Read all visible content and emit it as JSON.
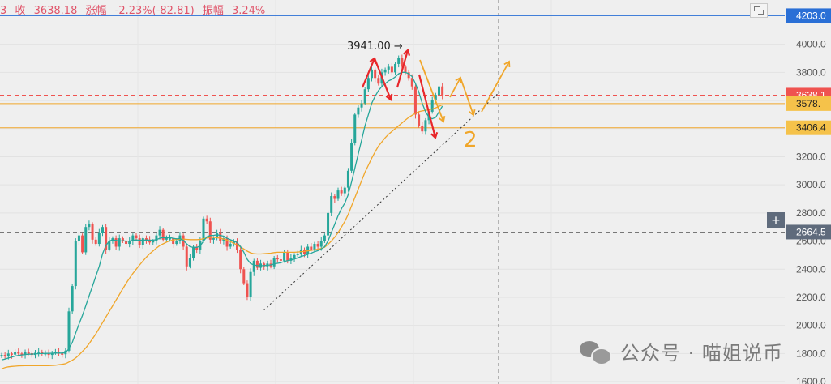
{
  "header": {
    "prefix": "3",
    "close_label": "收",
    "close_value": "3638.18",
    "change_label": "涨幅",
    "change_value": "-2.23%(-82.81)",
    "amplitude_label": "振幅",
    "amplitude_value": "3.24%"
  },
  "annotations": {
    "peak_label": "3941.00 →",
    "wave_label": "2"
  },
  "watermark": "公众号 · 喵姐说币",
  "price_tags": [
    {
      "text": "4203.0",
      "price": 4203,
      "style": "blue"
    },
    {
      "text": "3638.1",
      "price": 3638,
      "style": "red"
    },
    {
      "text": "3578.",
      "price": 3578,
      "style": "orange"
    },
    {
      "text": "3406.4",
      "price": 3406,
      "style": "orange"
    },
    {
      "text": "2664.5",
      "price": 2664,
      "style": "dark"
    }
  ],
  "colors": {
    "up": "#26a69a",
    "down": "#ef5350",
    "ma_fast": "#26a69a",
    "ma_slow": "#f0a62a",
    "annotation_red": "#e8262a",
    "annotation_orange": "#f0a62a",
    "hline_red": "#ef5350",
    "hline_orange": "#f0a62a",
    "hline_blue": "#2a6fd6"
  },
  "chart_data": {
    "type": "candlestick",
    "ylim": [
      1560,
      4240
    ],
    "y_ticks": [
      4000,
      3800,
      3600,
      3400,
      3200,
      3000,
      2800,
      2600,
      2400,
      2200,
      2000,
      1800,
      1600
    ],
    "y_tick_labels": [
      "4000.0",
      "3800.0",
      "3600.0",
      "3400.0",
      "3200.0",
      "3000.0",
      "2800.0",
      "2600.0",
      "2400.0",
      "2200.0",
      "2000.0",
      "1800.0",
      "1600.0"
    ],
    "grid": true,
    "horizontal_lines": [
      {
        "price": 4203,
        "style": "solid",
        "color": "blue"
      },
      {
        "price": 3638,
        "style": "dashed",
        "color": "red"
      },
      {
        "price": 3578,
        "style": "solid",
        "color": "orange"
      },
      {
        "price": 3406,
        "style": "solid",
        "color": "orange"
      },
      {
        "price": 2664,
        "style": "dashed",
        "color": "gray"
      }
    ],
    "series": [
      {
        "name": "close",
        "values": [
          1790,
          1782,
          1800,
          1792,
          1810,
          1800,
          1793,
          1808,
          1802,
          1790,
          1805,
          1812,
          1796,
          1802,
          1790,
          1805,
          1812,
          1800,
          1795,
          1820,
          2100,
          2280,
          2600,
          2640,
          2520,
          2700,
          2720,
          2610,
          2580,
          2660,
          2700,
          2540,
          2600,
          2620,
          2560,
          2620,
          2600,
          2580,
          2600,
          2640,
          2620,
          2570,
          2620,
          2610,
          2590,
          2600,
          2640,
          2680,
          2610,
          2620,
          2620,
          2580,
          2600,
          2640,
          2560,
          2420,
          2480,
          2560,
          2540,
          2600,
          2760,
          2740,
          2610,
          2620,
          2660,
          2600,
          2620,
          2560,
          2580,
          2600,
          2540,
          2400,
          2300,
          2200,
          2380,
          2460,
          2410,
          2440,
          2420,
          2440,
          2420,
          2480,
          2470,
          2460,
          2520,
          2460,
          2480,
          2500,
          2510,
          2540,
          2510,
          2560,
          2540,
          2580,
          2560,
          2600,
          2640,
          2800,
          2920,
          2900,
          2960,
          2940,
          2980,
          3100,
          3300,
          3500,
          3550,
          3580,
          3680,
          3760,
          3820,
          3760,
          3720,
          3800,
          3820,
          3840,
          3800,
          3860,
          3900,
          3840,
          3800,
          3760,
          3700,
          3500,
          3420,
          3380,
          3460,
          3520,
          3600,
          3640,
          3700,
          3638
        ]
      },
      {
        "name": "ma_fast",
        "values": [
          1755,
          1760,
          1768,
          1775,
          1782,
          1787,
          1790,
          1793,
          1795,
          1796,
          1797,
          1799,
          1800,
          1801,
          1801,
          1802,
          1803,
          1803,
          1803,
          1806,
          1835,
          1880,
          1945,
          2010,
          2070,
          2140,
          2210,
          2280,
          2350,
          2420,
          2510,
          2570,
          2600,
          2610,
          2605,
          2600,
          2602,
          2600,
          2600,
          2605,
          2608,
          2606,
          2606,
          2608,
          2606,
          2606,
          2610,
          2620,
          2625,
          2622,
          2625,
          2620,
          2615,
          2618,
          2605,
          2580,
          2560,
          2555,
          2555,
          2565,
          2600,
          2630,
          2640,
          2640,
          2645,
          2640,
          2635,
          2620,
          2610,
          2600,
          2590,
          2560,
          2520,
          2470,
          2440,
          2430,
          2425,
          2425,
          2425,
          2428,
          2430,
          2438,
          2442,
          2446,
          2455,
          2460,
          2466,
          2472,
          2480,
          2490,
          2497,
          2506,
          2514,
          2524,
          2532,
          2544,
          2560,
          2600,
          2660,
          2720,
          2780,
          2830,
          2870,
          2930,
          3020,
          3120,
          3220,
          3320,
          3420,
          3500,
          3580,
          3630,
          3670,
          3700,
          3720,
          3740,
          3750,
          3768,
          3790,
          3800,
          3800,
          3790,
          3770,
          3720,
          3660,
          3580,
          3520,
          3480,
          3470,
          3480,
          3520,
          3560
        ]
      },
      {
        "name": "ma_slow",
        "values": [
          1690,
          1700,
          1705,
          1708,
          1710,
          1712,
          1713,
          1714,
          1714,
          1714,
          1714,
          1714,
          1714,
          1714,
          1714,
          1715,
          1717,
          1720,
          1723,
          1728,
          1740,
          1752,
          1768,
          1790,
          1815,
          1840,
          1870,
          1905,
          1940,
          1980,
          2020,
          2060,
          2100,
          2140,
          2180,
          2220,
          2260,
          2300,
          2335,
          2370,
          2400,
          2430,
          2458,
          2485,
          2510,
          2530,
          2550,
          2568,
          2580,
          2592,
          2602,
          2608,
          2612,
          2614,
          2614,
          2612,
          2610,
          2610,
          2610,
          2612,
          2616,
          2622,
          2626,
          2626,
          2624,
          2620,
          2614,
          2606,
          2596,
          2584,
          2572,
          2558,
          2544,
          2528,
          2516,
          2510,
          2508,
          2508,
          2510,
          2512,
          2514,
          2518,
          2520,
          2520,
          2520,
          2520,
          2520,
          2520,
          2522,
          2524,
          2526,
          2530,
          2534,
          2538,
          2542,
          2548,
          2556,
          2576,
          2600,
          2628,
          2660,
          2700,
          2740,
          2790,
          2850,
          2910,
          2970,
          3030,
          3090,
          3140,
          3190,
          3235,
          3275,
          3305,
          3335,
          3360,
          3380,
          3400,
          3420,
          3440,
          3460,
          3480,
          3495,
          3510,
          3520,
          3526,
          3530,
          3534,
          3540,
          3548,
          3558,
          3570
        ]
      }
    ],
    "annotations": [
      {
        "type": "trendline",
        "from": {
          "bar": 78,
          "price": 2110
        },
        "to": {
          "bar": 148,
          "price": 3660
        },
        "style": "dotted"
      },
      {
        "type": "label",
        "text": "3941.00 →",
        "bar": 117,
        "price": 3941
      },
      {
        "type": "label",
        "text": "2",
        "bar": 150,
        "price": 3250
      }
    ]
  }
}
